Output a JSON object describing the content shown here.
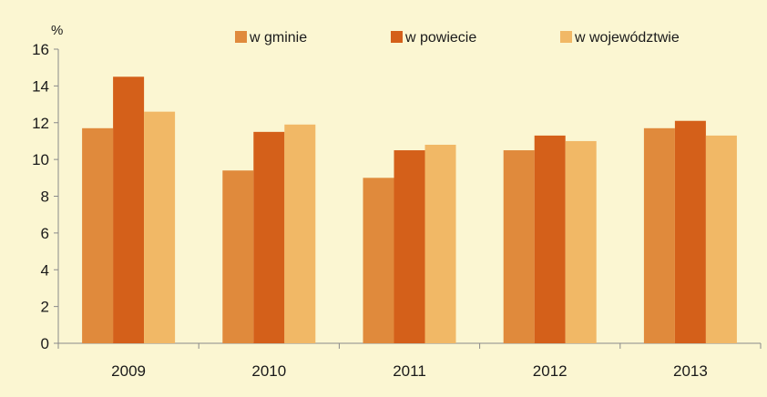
{
  "chart_data": {
    "type": "bar",
    "title": "",
    "xlabel": "",
    "ylabel": "%",
    "ylim": [
      0,
      16
    ],
    "yticks": [
      "0",
      "2",
      "4",
      "6",
      "8",
      "10",
      "12",
      "14",
      "16"
    ],
    "categories": [
      "2009",
      "2010",
      "2011",
      "2012",
      "2013"
    ],
    "series": [
      {
        "name": "w gminie",
        "color": "#e08a3c",
        "values": [
          11.7,
          9.4,
          9.0,
          10.5,
          11.7
        ]
      },
      {
        "name": "w powiecie",
        "color": "#d4601a",
        "values": [
          14.5,
          11.5,
          10.5,
          11.3,
          12.1
        ]
      },
      {
        "name": "w województwie",
        "color": "#f1b866",
        "values": [
          12.6,
          11.9,
          10.8,
          11.0,
          11.3
        ]
      }
    ],
    "grid": false,
    "legend": "top"
  },
  "colors": {
    "background": "#fbf6d2",
    "axis": "#8a8a8a"
  }
}
